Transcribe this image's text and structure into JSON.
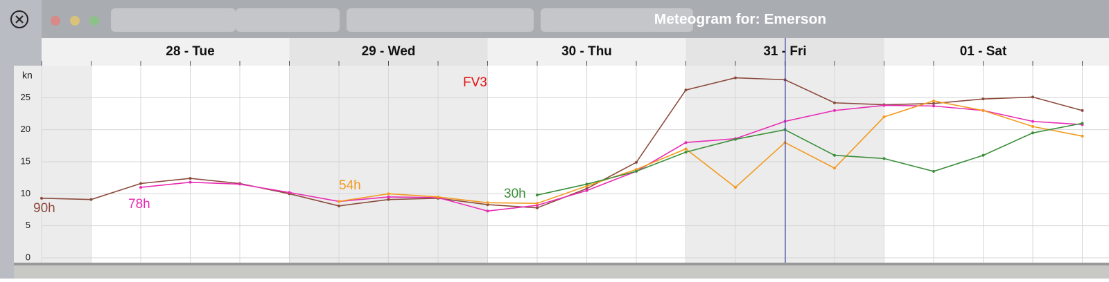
{
  "chart_data": {
    "type": "line",
    "title": "Meteogram for: Emerson",
    "y_label": "kn",
    "annotation": "FV3",
    "days": [
      "28 - Tue",
      "29 - Wed",
      "30 - Thu",
      "31 - Fri",
      "01 - Sat"
    ],
    "ylim": [
      0,
      30
    ],
    "yticks": [
      0,
      5,
      10,
      15,
      20,
      25
    ],
    "grid": true,
    "series": [
      {
        "name": "90h",
        "color": "#8b4a3c",
        "values": [
          9.3,
          9.1,
          11.6,
          12.4,
          11.6,
          10.0,
          8.1,
          9.1,
          9.3,
          8.3,
          7.8,
          10.8,
          14.9,
          26.2,
          28.1,
          27.8,
          24.2,
          23.9,
          24.1,
          24.8,
          25.1,
          23.0
        ]
      },
      {
        "name": "78h",
        "color": "#e82ab4",
        "values": [
          null,
          null,
          11.0,
          11.8,
          11.5,
          10.2,
          8.8,
          9.5,
          9.4,
          7.3,
          8.2,
          10.5,
          13.5,
          18.0,
          18.6,
          21.3,
          23.0,
          23.8,
          23.7,
          23.0,
          21.3,
          20.8
        ]
      },
      {
        "name": "54h",
        "color": "#f39a1e",
        "values": [
          null,
          null,
          null,
          null,
          null,
          null,
          8.8,
          10.0,
          9.5,
          8.6,
          8.5,
          11.2,
          13.8,
          17.0,
          11.0,
          18.0,
          14.0,
          22.0,
          24.5,
          23.0,
          20.5,
          19.0
        ]
      },
      {
        "name": "30h",
        "color": "#3a8f3a",
        "values": [
          null,
          null,
          null,
          null,
          null,
          null,
          null,
          null,
          null,
          null,
          9.8,
          11.5,
          13.5,
          16.5,
          18.5,
          20.0,
          16.0,
          15.5,
          13.5,
          16.0,
          19.5,
          21.0
        ]
      }
    ]
  }
}
